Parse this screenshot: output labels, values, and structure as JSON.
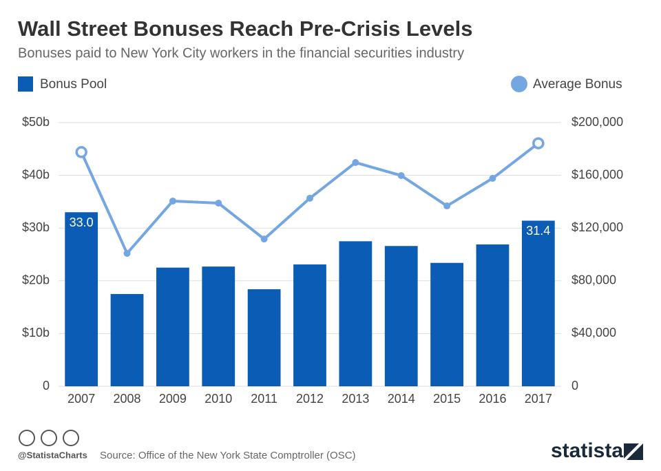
{
  "chart_data": {
    "type": "bar",
    "title": "Wall Street Bonuses Reach Pre-Crisis Levels",
    "subtitle": "Bonuses paid to New York City workers in the financial securities industry",
    "categories": [
      "2007",
      "2008",
      "2009",
      "2010",
      "2011",
      "2012",
      "2013",
      "2014",
      "2015",
      "2016",
      "2017"
    ],
    "series": [
      {
        "name": "Bonus Pool",
        "type": "bar",
        "color": "#0b5cb5",
        "values": [
          33.0,
          17.5,
          22.5,
          22.7,
          18.4,
          23.1,
          27.5,
          26.6,
          23.4,
          26.9,
          31.4
        ],
        "value_labels": [
          "33.0",
          null,
          null,
          null,
          null,
          null,
          null,
          null,
          null,
          null,
          "31.4"
        ]
      },
      {
        "name": "Average Bonus",
        "type": "line",
        "axis": "y2",
        "color": "#74a6e2",
        "values": [
          177600,
          100800,
          140500,
          138900,
          111700,
          142600,
          169700,
          159800,
          136800,
          157700,
          184300
        ]
      }
    ],
    "ylim": [
      0,
      50
    ],
    "yticks": [
      {
        "value": 0,
        "label": "0"
      },
      {
        "value": 10,
        "label": "$10b"
      },
      {
        "value": 20,
        "label": "$20b"
      },
      {
        "value": 30,
        "label": "$30b"
      },
      {
        "value": 40,
        "label": "$40b"
      },
      {
        "value": 50,
        "label": "$50b"
      }
    ],
    "y2lim": [
      0,
      200000
    ],
    "y2ticks": [
      {
        "value": 0,
        "label": "0"
      },
      {
        "value": 40000,
        "label": "$40,000"
      },
      {
        "value": 80000,
        "label": "$80,000"
      },
      {
        "value": 120000,
        "label": "$120,000"
      },
      {
        "value": 160000,
        "label": "$160,000"
      },
      {
        "value": 200000,
        "label": "$200,000"
      }
    ],
    "grid": true
  },
  "footer": {
    "handle": "@StatistaCharts",
    "source": "Source: Office of the New York State Comptroller (OSC)",
    "logo": "statista"
  }
}
